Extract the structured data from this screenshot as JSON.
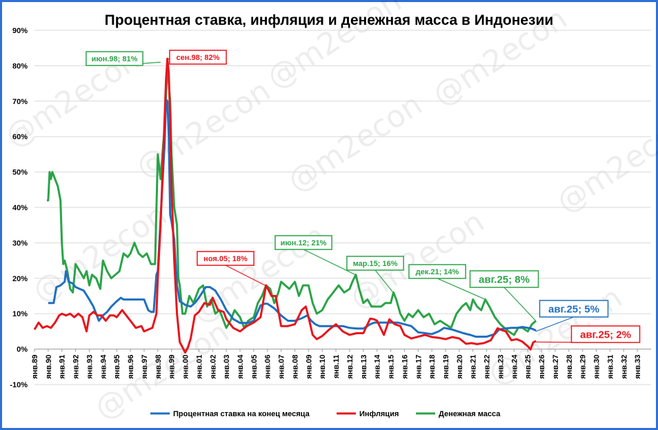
{
  "chart_data": {
    "type": "line",
    "title": "Процентная ставка, инфляция и денежная масса в Индонезии",
    "ylim": [
      -10,
      90
    ],
    "yticks": [
      -10,
      0,
      10,
      20,
      30,
      40,
      50,
      60,
      70,
      80,
      90
    ],
    "ytick_labels": [
      "-10%",
      "0%",
      "10%",
      "20%",
      "30%",
      "40%",
      "50%",
      "60%",
      "70%",
      "80%",
      "90%"
    ],
    "xlim": [
      1989,
      2034
    ],
    "x_tick_labels": [
      "янв.89",
      "янв.90",
      "янв.91",
      "янв.92",
      "янв.93",
      "янв.94",
      "янв.95",
      "янв.96",
      "янв.97",
      "янв.98",
      "янв.99",
      "янв.00",
      "янв.01",
      "янв.02",
      "янв.03",
      "янв.04",
      "янв.05",
      "янв.06",
      "янв.07",
      "янв.08",
      "янв.09",
      "янв.10",
      "янв.11",
      "янв.12",
      "янв.13",
      "янв.14",
      "янв.15",
      "янв.16",
      "янв.17",
      "янв.18",
      "янв.19",
      "янв.20",
      "янв.21",
      "янв.22",
      "янв.23",
      "янв.24",
      "янв.25",
      "янв.26",
      "янв.27",
      "янв.28",
      "янв.29",
      "янв.30",
      "янв.31",
      "янв.32",
      "янв.33"
    ],
    "grid": true,
    "legend_position": "bottom",
    "watermark": "@m2econ",
    "series": [
      {
        "name": "Процентная ставка на конец месяца",
        "color": "#1f6fc0",
        "x": [
          1990.0,
          1990.4,
          1990.6,
          1990.9,
          1991.2,
          1991.3,
          1991.5,
          1991.8,
          1992.0,
          1992.3,
          1992.6,
          1993.0,
          1993.3,
          1993.5,
          1993.7,
          1994.0,
          1994.3,
          1994.6,
          1995.0,
          1995.3,
          1995.5,
          1995.8,
          1996.0,
          1996.3,
          1996.6,
          1997.0,
          1997.3,
          1997.5,
          1997.7,
          1997.9,
          1998.0,
          1998.3,
          1998.5,
          1998.6,
          1998.7,
          1998.8,
          1998.9,
          1999.0,
          1999.2,
          1999.4,
          1999.6,
          1999.8,
          2000.0,
          2000.4,
          2000.7,
          2001.0,
          2001.5,
          2001.8,
          2002.2,
          2002.6,
          2003.0,
          2003.5,
          2004.0,
          2004.6,
          2005.0,
          2005.5,
          2005.8,
          2006.0,
          2006.5,
          2007.0,
          2007.5,
          2008.0,
          2008.5,
          2008.9,
          2009.2,
          2009.5,
          2009.8,
          2010.5,
          2011.5,
          2012.0,
          2012.5,
          2013.0,
          2013.5,
          2013.8,
          2014.0,
          2014.5,
          2015.0,
          2015.5,
          2016.0,
          2016.5,
          2017.0,
          2017.5,
          2018.0,
          2018.5,
          2018.9,
          2019.5,
          2019.9,
          2020.3,
          2020.8,
          2021.2,
          2022.0,
          2022.6,
          2022.9,
          2023.2,
          2023.8,
          2024.2,
          2024.6,
          2025.0,
          2025.3,
          2025.6
        ],
        "y": [
          13.0,
          13.0,
          17.5,
          18.0,
          19.0,
          22.0,
          19.0,
          18.5,
          17.5,
          17.0,
          16.5,
          14.0,
          12.0,
          10.0,
          8.0,
          9.5,
          10.5,
          12.0,
          13.5,
          14.5,
          14.0,
          14.0,
          14.0,
          14.0,
          14.0,
          14.0,
          11.0,
          10.5,
          10.5,
          21.0,
          22.0,
          44.0,
          58.0,
          70.5,
          70.0,
          60.0,
          38.0,
          36.0,
          31.0,
          18.0,
          13.5,
          13.0,
          12.5,
          12.0,
          13.0,
          14.5,
          17.5,
          17.5,
          16.5,
          14.0,
          11.0,
          8.5,
          7.4,
          7.4,
          8.0,
          12.3,
          12.8,
          12.8,
          11.5,
          9.5,
          8.0,
          8.0,
          8.7,
          9.5,
          8.0,
          7.0,
          6.5,
          6.5,
          6.5,
          6.0,
          5.8,
          5.8,
          7.0,
          7.5,
          7.5,
          7.5,
          7.5,
          7.5,
          7.0,
          6.5,
          4.75,
          4.5,
          4.25,
          5.0,
          6.0,
          5.5,
          5.0,
          4.5,
          4.0,
          3.5,
          3.5,
          4.25,
          5.5,
          5.75,
          6.0,
          6.0,
          6.25,
          6.0,
          5.75,
          5.25
        ]
      },
      {
        "name": "Инфляция",
        "color": "#e8141b",
        "x": [
          1989.0,
          1989.3,
          1989.6,
          1989.9,
          1990.2,
          1990.5,
          1990.8,
          1991.0,
          1991.3,
          1991.6,
          1991.9,
          1992.2,
          1992.5,
          1992.8,
          1993.0,
          1993.3,
          1993.6,
          1993.9,
          1994.2,
          1994.5,
          1994.8,
          1995.0,
          1995.4,
          1995.8,
          1996.0,
          1996.4,
          1996.8,
          1997.0,
          1997.3,
          1997.6,
          1997.9,
          1998.0,
          1998.2,
          1998.4,
          1998.6,
          1998.7,
          1998.8,
          1998.9,
          1999.0,
          1999.2,
          1999.4,
          1999.6,
          1999.8,
          2000.0,
          2000.2,
          2000.4,
          2000.7,
          2001.0,
          2001.4,
          2001.8,
          2002.0,
          2002.4,
          2002.8,
          2003.0,
          2003.5,
          2004.0,
          2004.5,
          2005.0,
          2005.5,
          2005.9,
          2006.3,
          2006.6,
          2007.0,
          2007.5,
          2008.0,
          2008.5,
          2008.8,
          2009.0,
          2009.3,
          2009.6,
          2010.0,
          2010.5,
          2011.0,
          2011.5,
          2012.0,
          2012.5,
          2013.0,
          2013.5,
          2013.8,
          2014.0,
          2014.5,
          2014.9,
          2015.3,
          2015.7,
          2016.0,
          2016.5,
          2017.0,
          2017.5,
          2018.0,
          2018.5,
          2019.0,
          2019.5,
          2020.0,
          2020.5,
          2020.9,
          2021.3,
          2021.8,
          2022.3,
          2022.8,
          2023.0,
          2023.4,
          2023.8,
          2024.2,
          2024.6,
          2025.0,
          2025.2,
          2025.4,
          2025.6
        ],
        "y": [
          5.5,
          7.5,
          6.0,
          6.5,
          6.0,
          7.5,
          9.5,
          10.0,
          9.5,
          10.0,
          9.0,
          10.0,
          9.0,
          5.0,
          9.5,
          10.5,
          9.5,
          9.5,
          8.0,
          9.5,
          9.5,
          9.0,
          11.0,
          9.0,
          8.0,
          6.0,
          6.5,
          5.0,
          5.5,
          6.0,
          10.0,
          20.0,
          35.0,
          55.0,
          76.0,
          82.0,
          78.0,
          65.0,
          45.0,
          25.0,
          10.0,
          2.0,
          0.5,
          -1.0,
          0.5,
          3.0,
          9.5,
          10.5,
          13.0,
          12.5,
          14.5,
          11.0,
          10.5,
          8.5,
          6.0,
          5.0,
          6.5,
          7.5,
          9.0,
          18.0,
          15.0,
          15.0,
          6.5,
          6.5,
          7.0,
          11.0,
          12.0,
          9.0,
          4.0,
          2.8,
          3.7,
          5.5,
          7.0,
          5.0,
          4.0,
          4.5,
          4.5,
          8.6,
          8.4,
          8.0,
          4.0,
          8.4,
          7.0,
          6.5,
          4.0,
          3.0,
          3.5,
          4.0,
          3.4,
          3.2,
          2.8,
          3.4,
          3.0,
          1.5,
          1.7,
          1.4,
          1.7,
          2.5,
          5.9,
          5.5,
          5.0,
          2.5,
          2.8,
          2.1,
          0.8,
          -0.1,
          1.9,
          2.3
        ]
      },
      {
        "name": "Денежная масса",
        "color": "#2aa347",
        "x": [
          1989.9,
          1990.0,
          1990.1,
          1990.2,
          1990.3,
          1990.5,
          1990.7,
          1990.9,
          1991.0,
          1991.1,
          1991.2,
          1991.4,
          1991.6,
          1991.8,
          1992.0,
          1992.3,
          1992.6,
          1992.8,
          1993.0,
          1993.2,
          1993.5,
          1993.8,
          1994.0,
          1994.3,
          1994.6,
          1994.9,
          1995.2,
          1995.5,
          1995.8,
          1996.0,
          1996.3,
          1996.6,
          1996.9,
          1997.2,
          1997.5,
          1997.8,
          1998.0,
          1998.2,
          1998.4,
          1998.5,
          1998.6,
          1998.7,
          1998.8,
          1998.9,
          1999.0,
          1999.2,
          1999.4,
          1999.5,
          1999.6,
          1999.7,
          1999.8,
          2000.0,
          2000.3,
          2000.6,
          2001.0,
          2001.3,
          2001.6,
          2001.9,
          2002.2,
          2002.5,
          2002.8,
          2003.0,
          2003.3,
          2003.6,
          2004.0,
          2004.3,
          2004.6,
          2005.0,
          2005.3,
          2005.6,
          2005.9,
          2006.2,
          2006.5,
          2006.8,
          2007.0,
          2007.3,
          2007.6,
          2008.0,
          2008.3,
          2008.6,
          2009.0,
          2009.3,
          2009.6,
          2010.0,
          2010.4,
          2010.8,
          2011.2,
          2011.6,
          2012.0,
          2012.2,
          2012.45,
          2012.7,
          2013.0,
          2013.3,
          2013.6,
          2014.0,
          2014.3,
          2014.6,
          2015.0,
          2015.2,
          2015.4,
          2015.7,
          2016.0,
          2016.3,
          2016.6,
          2017.0,
          2017.4,
          2017.8,
          2018.2,
          2018.6,
          2019.0,
          2019.4,
          2019.8,
          2020.2,
          2020.5,
          2020.8,
          2021.0,
          2021.3,
          2021.6,
          2021.9,
          2022.2,
          2022.6,
          2023.0,
          2023.3,
          2023.6,
          2024.0,
          2024.3,
          2024.6,
          2025.0,
          2025.3,
          2025.6
        ],
        "y": [
          42.0,
          42.0,
          50.0,
          48.0,
          50.0,
          48.0,
          46.0,
          42.0,
          30.0,
          24.0,
          25.0,
          22.0,
          17.0,
          16.0,
          24.0,
          22.0,
          20.0,
          22.0,
          18.0,
          21.0,
          20.0,
          17.0,
          25.0,
          22.0,
          20.0,
          21.0,
          22.0,
          27.0,
          26.0,
          27.0,
          30.0,
          27.0,
          26.0,
          27.0,
          24.0,
          24.0,
          55.0,
          48.0,
          58.0,
          62.0,
          72.0,
          81.0,
          75.0,
          70.0,
          55.0,
          40.0,
          35.0,
          20.0,
          18.0,
          14.0,
          10.0,
          10.0,
          15.0,
          13.0,
          17.0,
          18.0,
          12.0,
          14.0,
          10.0,
          11.0,
          8.0,
          6.0,
          8.0,
          11.0,
          9.0,
          6.0,
          8.0,
          9.0,
          13.0,
          15.0,
          18.0,
          17.0,
          13.0,
          16.0,
          19.0,
          18.0,
          17.0,
          19.0,
          15.0,
          18.0,
          18.0,
          13.0,
          10.0,
          11.0,
          14.0,
          16.0,
          18.0,
          16.0,
          17.0,
          19.0,
          21.0,
          17.0,
          13.0,
          14.0,
          12.0,
          12.0,
          12.0,
          13.0,
          13.0,
          16.0,
          14.0,
          10.0,
          8.0,
          10.0,
          9.0,
          11.0,
          9.0,
          10.0,
          7.0,
          8.0,
          7.0,
          6.0,
          10.0,
          12.0,
          13.0,
          11.0,
          14.0,
          12.0,
          11.0,
          14.0,
          12.0,
          9.0,
          7.0,
          6.0,
          5.0,
          4.0,
          6.0,
          6.0,
          5.0,
          7.0,
          8.0
        ]
      }
    ],
    "annotations": [
      {
        "text": "июн.98; 81%",
        "series": "Денежная масса",
        "x": 1998.42,
        "y": 81
      },
      {
        "text": "сен.98; 82%",
        "series": "Инфляция",
        "x": 1998.67,
        "y": 82
      },
      {
        "text": "ноя.05; 18%",
        "series": "Инфляция",
        "x": 2005.83,
        "y": 18
      },
      {
        "text": "июн.12; 21%",
        "series": "Денежная масса",
        "x": 2012.42,
        "y": 21
      },
      {
        "text": "мар.15; 16%",
        "series": "Денежная масса",
        "x": 2015.17,
        "y": 16
      },
      {
        "text": "дек.21; 14%",
        "series": "Денежная масса",
        "x": 2021.92,
        "y": 14
      },
      {
        "text": "авг.25; 8%",
        "series": "Денежная масса",
        "x": 2025.58,
        "y": 8
      },
      {
        "text": "авг.25; 5%",
        "series": "Процентная ставка на конец месяца",
        "x": 2025.58,
        "y": 5
      },
      {
        "text": "авг.25; 2%",
        "series": "Инфляция",
        "x": 2025.58,
        "y": 2
      }
    ]
  }
}
